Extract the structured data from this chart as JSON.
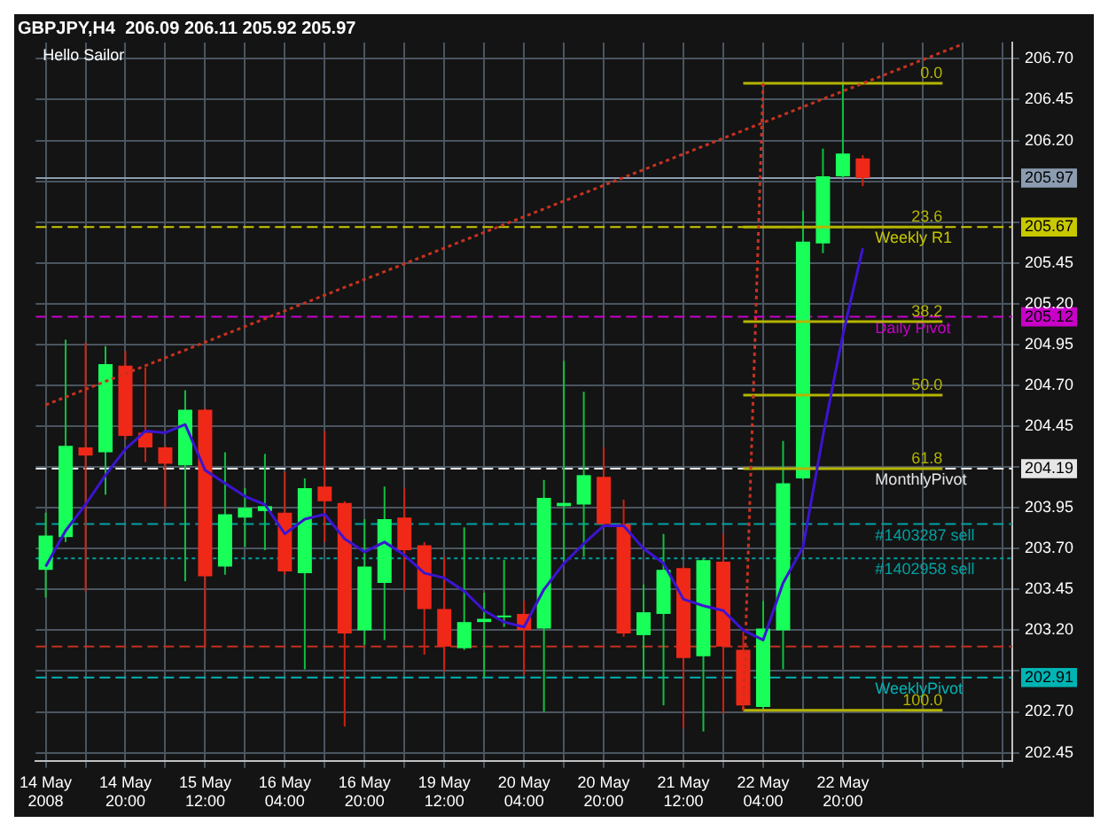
{
  "chart_data": {
    "type": "candlestick",
    "title": "GBPJPY,H4  206.09 206.11 205.92 205.97",
    "categories": [
      "14 May 2008",
      null,
      null,
      null,
      "14 May 20:00",
      null,
      null,
      null,
      "15 May 12:00",
      null,
      null,
      null,
      "16 May 04:00",
      null,
      null,
      null,
      "16 May 20:00",
      null,
      null,
      null,
      "19 May 12:00",
      null,
      null,
      null,
      "20 May 04:00",
      null,
      null,
      null,
      "20 May 20:00",
      null,
      null,
      null,
      "21 May 12:00",
      null,
      null,
      null,
      "22 May 04:00",
      null,
      null,
      null,
      "22 May 20:00",
      null,
      null,
      null,
      null,
      null,
      null,
      null,
      null
    ],
    "ohlc": [
      [
        203.57,
        203.92,
        203.4,
        203.78
      ],
      [
        203.77,
        204.98,
        203.74,
        204.33
      ],
      [
        204.32,
        204.96,
        203.44,
        204.27
      ],
      [
        204.29,
        204.94,
        204.03,
        204.83
      ],
      [
        204.82,
        204.91,
        204.37,
        204.39
      ],
      [
        204.41,
        204.81,
        204.23,
        204.32
      ],
      [
        204.32,
        204.33,
        203.95,
        204.22
      ],
      [
        204.21,
        204.67,
        203.5,
        204.55
      ],
      [
        204.55,
        204.56,
        203.1,
        203.53
      ],
      [
        203.59,
        204.29,
        203.54,
        203.91
      ],
      [
        203.89,
        204.07,
        203.71,
        203.95
      ],
      [
        203.93,
        204.28,
        203.69,
        203.96
      ],
      [
        203.92,
        204.17,
        203.54,
        203.56
      ],
      [
        203.55,
        204.13,
        202.96,
        204.07
      ],
      [
        204.08,
        204.42,
        203.74,
        203.99
      ],
      [
        203.98,
        203.99,
        202.61,
        203.18
      ],
      [
        203.2,
        203.88,
        203.11,
        203.59
      ],
      [
        203.49,
        204.08,
        203.14,
        203.88
      ],
      [
        203.89,
        204.07,
        203.44,
        203.69
      ],
      [
        203.72,
        203.74,
        203.05,
        203.33
      ],
      [
        203.33,
        203.65,
        202.95,
        203.1
      ],
      [
        203.09,
        203.83,
        203.08,
        203.25
      ],
      [
        203.25,
        203.43,
        202.91,
        203.27
      ],
      [
        203.28,
        203.63,
        203.22,
        203.29
      ],
      [
        203.3,
        203.38,
        202.93,
        203.2
      ],
      [
        203.21,
        204.12,
        202.7,
        204.01
      ],
      [
        203.96,
        204.85,
        203.61,
        203.98
      ],
      [
        203.97,
        204.66,
        203.65,
        204.15
      ],
      [
        204.14,
        204.32,
        203.84,
        203.85
      ],
      [
        203.85,
        204.0,
        203.16,
        203.18
      ],
      [
        203.17,
        203.48,
        202.91,
        203.31
      ],
      [
        203.3,
        203.79,
        202.74,
        203.57
      ],
      [
        203.58,
        203.59,
        202.6,
        203.03
      ],
      [
        203.04,
        203.64,
        202.58,
        203.63
      ],
      [
        203.62,
        203.79,
        202.69,
        203.1
      ],
      [
        203.08,
        203.19,
        202.71,
        202.74
      ],
      [
        202.73,
        203.38,
        202.71,
        203.21
      ],
      [
        203.2,
        204.36,
        202.96,
        204.1
      ],
      [
        204.13,
        205.77,
        204.12,
        205.58
      ],
      [
        205.57,
        206.15,
        205.51,
        205.98
      ],
      [
        205.98,
        206.55,
        205.97,
        206.12
      ],
      [
        206.09,
        206.11,
        205.92,
        205.97
      ],
      null,
      null,
      null,
      null,
      null,
      null,
      null
    ],
    "series": [
      {
        "type": "line",
        "color": "#3c14d2",
        "line_style": "solid",
        "values": [
          203.59,
          203.81,
          203.97,
          204.15,
          204.31,
          204.42,
          204.41,
          204.46,
          204.18,
          204.1,
          204.02,
          203.97,
          203.79,
          203.88,
          203.91,
          203.76,
          203.68,
          203.74,
          203.66,
          203.55,
          203.52,
          203.44,
          203.32,
          203.25,
          203.22,
          203.45,
          203.61,
          203.73,
          203.84,
          203.84,
          203.7,
          203.61,
          203.39,
          203.35,
          203.32,
          203.2,
          203.14,
          203.49,
          203.71,
          204.39,
          205.01,
          205.54,
          null,
          null,
          null,
          null,
          null,
          null,
          null
        ]
      },
      {
        "type": "line",
        "color": "#c83220",
        "line_style": "dotted",
        "values": [
          204.58,
          null,
          null,
          null,
          null,
          null,
          null,
          null,
          null,
          null,
          null,
          null,
          null,
          null,
          null,
          null,
          null,
          null,
          null,
          null,
          null,
          null,
          null,
          null,
          null,
          null,
          null,
          null,
          null,
          null,
          null,
          null,
          null,
          null,
          null,
          null,
          null,
          null,
          null,
          null,
          null,
          null,
          null,
          null,
          null,
          null,
          206.79,
          null,
          null
        ]
      },
      {
        "type": "line",
        "color": "#c83220",
        "line_style": "dotted",
        "values": [
          null,
          null,
          null,
          null,
          null,
          null,
          null,
          null,
          null,
          null,
          null,
          null,
          null,
          null,
          null,
          null,
          null,
          null,
          null,
          null,
          null,
          null,
          null,
          null,
          null,
          null,
          null,
          null,
          null,
          null,
          null,
          null,
          null,
          null,
          null,
          202.71,
          206.55,
          null,
          null,
          null,
          null,
          null,
          null,
          null,
          null,
          null,
          null,
          null,
          null
        ]
      },
      {
        "type": "line",
        "name": "0.0",
        "color": "#b4b400",
        "line_style": "solid",
        "values": [
          null,
          null,
          null,
          null,
          null,
          null,
          null,
          null,
          null,
          null,
          null,
          null,
          null,
          null,
          null,
          null,
          null,
          null,
          null,
          null,
          null,
          null,
          null,
          null,
          null,
          null,
          null,
          null,
          null,
          null,
          null,
          null,
          null,
          null,
          null,
          206.55,
          206.55,
          206.55,
          206.55,
          206.55,
          206.55,
          206.55,
          206.55,
          206.55,
          206.55,
          206.55,
          null,
          null,
          null
        ]
      },
      {
        "type": "line",
        "name": "23.6",
        "color": "#b4b400",
        "line_style": "solid",
        "values": [
          null,
          null,
          null,
          null,
          null,
          null,
          null,
          null,
          null,
          null,
          null,
          null,
          null,
          null,
          null,
          null,
          null,
          null,
          null,
          null,
          null,
          null,
          null,
          null,
          null,
          null,
          null,
          null,
          null,
          null,
          null,
          null,
          null,
          null,
          null,
          205.67,
          205.67,
          205.67,
          205.67,
          205.67,
          205.67,
          205.67,
          205.67,
          205.67,
          205.67,
          205.67,
          null,
          null,
          null
        ]
      },
      {
        "type": "line",
        "name": "38.2",
        "color": "#b4b400",
        "line_style": "solid",
        "values": [
          null,
          null,
          null,
          null,
          null,
          null,
          null,
          null,
          null,
          null,
          null,
          null,
          null,
          null,
          null,
          null,
          null,
          null,
          null,
          null,
          null,
          null,
          null,
          null,
          null,
          null,
          null,
          null,
          null,
          null,
          null,
          null,
          null,
          null,
          null,
          205.09,
          205.09,
          205.09,
          205.09,
          205.09,
          205.09,
          205.09,
          205.09,
          205.09,
          205.09,
          205.09,
          null,
          null,
          null
        ]
      },
      {
        "type": "line",
        "name": "50.0",
        "color": "#b4b400",
        "line_style": "solid",
        "values": [
          null,
          null,
          null,
          null,
          null,
          null,
          null,
          null,
          null,
          null,
          null,
          null,
          null,
          null,
          null,
          null,
          null,
          null,
          null,
          null,
          null,
          null,
          null,
          null,
          null,
          null,
          null,
          null,
          null,
          null,
          null,
          null,
          null,
          null,
          null,
          204.64,
          204.64,
          204.64,
          204.64,
          204.64,
          204.64,
          204.64,
          204.64,
          204.64,
          204.64,
          204.64,
          null,
          null,
          null
        ]
      },
      {
        "type": "line",
        "name": "61.8",
        "color": "#b4b400",
        "line_style": "solid",
        "values": [
          null,
          null,
          null,
          null,
          null,
          null,
          null,
          null,
          null,
          null,
          null,
          null,
          null,
          null,
          null,
          null,
          null,
          null,
          null,
          null,
          null,
          null,
          null,
          null,
          null,
          null,
          null,
          null,
          null,
          null,
          null,
          null,
          null,
          null,
          null,
          204.19,
          204.19,
          204.19,
          204.19,
          204.19,
          204.19,
          204.19,
          204.19,
          204.19,
          204.19,
          204.19,
          null,
          null,
          null
        ]
      },
      {
        "type": "line",
        "name": "100.0",
        "color": "#b4b400",
        "line_style": "solid",
        "values": [
          null,
          null,
          null,
          null,
          null,
          null,
          null,
          null,
          null,
          null,
          null,
          null,
          null,
          null,
          null,
          null,
          null,
          null,
          null,
          null,
          null,
          null,
          null,
          null,
          null,
          null,
          null,
          null,
          null,
          null,
          null,
          null,
          null,
          null,
          null,
          202.71,
          202.71,
          202.71,
          202.71,
          202.71,
          202.71,
          202.71,
          202.71,
          202.71,
          202.71,
          202.71,
          null,
          null,
          null
        ]
      }
    ],
    "ylim": [
      202.4,
      206.8
    ],
    "yticks": [
      {
        "value": 202.45,
        "label": "202.45"
      },
      {
        "value": 202.7,
        "label": "202.70"
      },
      {
        "value": 202.91,
        "label": "202.91"
      },
      {
        "value": 202.95,
        "label": null
      },
      {
        "value": 203.2,
        "label": "203.20"
      },
      {
        "value": 203.45,
        "label": "203.45"
      },
      {
        "value": 203.7,
        "label": "203.70"
      },
      {
        "value": 203.95,
        "label": "203.95"
      },
      {
        "value": 204.19,
        "label": "204.19"
      },
      {
        "value": 204.2,
        "label": null
      },
      {
        "value": 204.45,
        "label": "204.45"
      },
      {
        "value": 204.7,
        "label": "204.70"
      },
      {
        "value": 204.95,
        "label": "204.95"
      },
      {
        "value": 205.12,
        "label": "205.12"
      },
      {
        "value": 205.2,
        "label": "205.20"
      },
      {
        "value": 205.45,
        "label": "205.45"
      },
      {
        "value": 205.67,
        "label": "205.67"
      },
      {
        "value": 205.7,
        "label": null
      },
      {
        "value": 205.95,
        "label": null
      },
      {
        "value": 205.97,
        "label": "205.97"
      },
      {
        "value": 206.2,
        "label": "206.20"
      },
      {
        "value": 206.45,
        "label": "206.45"
      },
      {
        "value": 206.7,
        "label": "206.70"
      }
    ],
    "grid": true,
    "legend": false,
    "marker": "none",
    "ref_lines": [
      {
        "axis": "y",
        "value": 205.67,
        "label": "Weekly R1",
        "color": "#c8c800",
        "line_style": "dashed"
      },
      {
        "axis": "y",
        "value": 205.12,
        "label": "Daily Pivot",
        "color": "#c800c8",
        "line_style": "dashed"
      },
      {
        "axis": "y",
        "value": 204.19,
        "label": "MonthlyPivot",
        "color": "#e6e6e6",
        "line_style": "dashed"
      },
      {
        "axis": "y",
        "value": 202.91,
        "label": "WeeklyPivot",
        "color": "#00b4b4",
        "line_style": "dashed"
      },
      {
        "axis": "y",
        "value": 203.85,
        "label": "#1403287 sell",
        "color": "#00a0a0",
        "line_style": "dashed"
      },
      {
        "axis": "y",
        "value": 203.64,
        "label": "#1402958 sell",
        "color": "#00a0a0",
        "line_style": "dotted"
      },
      {
        "axis": "y",
        "value": 203.1,
        "color": "#c03020",
        "line_style": "dashed"
      },
      {
        "axis": "y",
        "value": 205.97,
        "color": "#8c9cb0",
        "line_style": "solid"
      }
    ],
    "annotations": [
      "Hello Sailor"
    ]
  }
}
